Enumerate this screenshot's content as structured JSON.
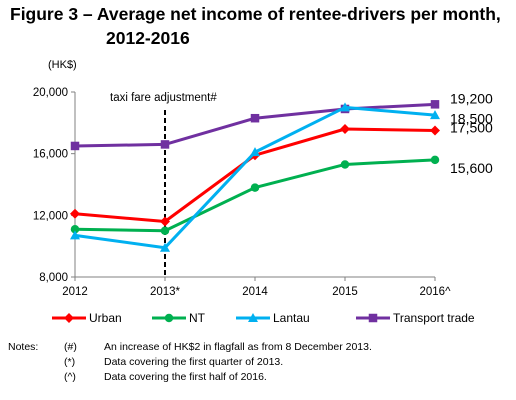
{
  "title_line1": "Figure 3 – Average net income of rentee-drivers per month,",
  "title_line2": "2012-2016",
  "chart_data": {
    "type": "line",
    "unit_label": "(HK$)",
    "categories": [
      "2012",
      "2013*",
      "2014",
      "2015",
      "2016^"
    ],
    "ylim": [
      8000,
      20000
    ],
    "yticks": [
      8000,
      12000,
      16000,
      20000
    ],
    "ytick_labels": [
      "8,000",
      "12,000",
      "16,000",
      "20,000"
    ],
    "grid": false,
    "legend_position": "bottom",
    "series": [
      {
        "name": "Urban",
        "color": "#ff0000",
        "marker": "diamond",
        "values": [
          12100,
          11600,
          15900,
          17600,
          17500
        ]
      },
      {
        "name": "NT",
        "color": "#00b050",
        "marker": "circle",
        "values": [
          11100,
          11000,
          13800,
          15300,
          15600
        ]
      },
      {
        "name": "Lantau",
        "color": "#00b0f0",
        "marker": "triangle",
        "values": [
          10700,
          9900,
          16100,
          19000,
          18500
        ]
      },
      {
        "name": "Transport trade",
        "color": "#7030a0",
        "marker": "square",
        "values": [
          16500,
          16600,
          18300,
          18900,
          19200
        ]
      }
    ],
    "end_labels": [
      "19,200",
      "18,500",
      "17,500",
      "15,600"
    ],
    "annotation": {
      "text": "taxi fare adjustment#",
      "at_category": "2013*"
    }
  },
  "notes": {
    "label": "Notes:",
    "items": [
      {
        "symbol": "(#)",
        "text": "An increase of HK$2 in flagfall as from 8 December 2013."
      },
      {
        "symbol": "(*)",
        "text": "Data covering the first quarter of 2013."
      },
      {
        "symbol": "(^)",
        "text": "Data covering the first half of 2016."
      }
    ]
  }
}
